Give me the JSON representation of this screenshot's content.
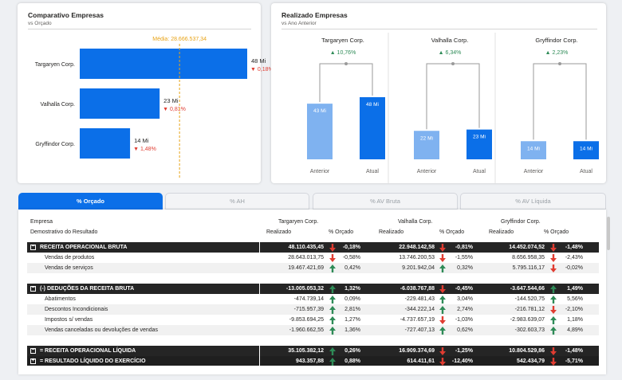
{
  "card1": {
    "title": "Comparativo Empresas",
    "subtitle": "vs Orçado",
    "media_label": "Média: 28.666.537,34",
    "bars": [
      {
        "name": "Targaryen Corp.",
        "value_label": "48 Mi",
        "pct": "0,18%"
      },
      {
        "name": "Valhalla Corp.",
        "value_label": "23 Mi",
        "pct": "0,81%"
      },
      {
        "name": "Gryffindor Corp.",
        "value_label": "14 Mi",
        "pct": "1,48%"
      }
    ],
    "chart_data": {
      "type": "bar",
      "categories": [
        "Targaryen Corp.",
        "Valhalla Corp.",
        "Gryffindor Corp."
      ],
      "values": [
        48110435,
        22948142,
        14452074
      ],
      "reference_line": 28666537.34
    }
  },
  "card2": {
    "title": "Realizado Empresas",
    "subtitle": "vs Ano Anterior",
    "groups": [
      {
        "name": "Targaryen Corp.",
        "delta": "10,76%",
        "anterior_label": "43 Mi",
        "atual_label": "48 Mi",
        "anterior": 43,
        "atual": 48
      },
      {
        "name": "Valhalla Corp.",
        "delta": "6,34%",
        "anterior_label": "22 Mi",
        "atual_label": "23 Mi",
        "anterior": 22,
        "atual": 23
      },
      {
        "name": "Gryffindor Corp.",
        "delta": "2,23%",
        "anterior_label": "14 Mi",
        "atual_label": "14 Mi",
        "anterior": 14,
        "atual": 14
      }
    ],
    "x_labels": [
      "Anterior",
      "Atual"
    ],
    "chart_data": {
      "type": "bar",
      "categories": [
        "Targaryen Corp.",
        "Valhalla Corp.",
        "Gryffindor Corp."
      ],
      "series": [
        {
          "name": "Anterior",
          "values": [
            43,
            22,
            14
          ]
        },
        {
          "name": "Atual",
          "values": [
            48,
            23,
            14
          ]
        }
      ]
    }
  },
  "tabs": [
    "% Orçado",
    "% AH",
    "% AV Bruta",
    "% AV Líquida"
  ],
  "table": {
    "h_empresa": "Empresa",
    "h_demo": "Demostrativo do Resultado",
    "companies": [
      "Targaryen Corp.",
      "Valhalla Corp.",
      "Gryffindor Corp."
    ],
    "h_realizado": "Realizado",
    "h_orcado": "% Orçado",
    "rows": [
      {
        "kind": "group",
        "label": "RECEITA OPERACIONAL BRUTA",
        "box": "−",
        "vals": [
          [
            "48.110.435,45",
            "-0,18%",
            "down"
          ],
          [
            "22.948.142,58",
            "-0,81%",
            "down"
          ],
          [
            "14.452.074,52",
            "-1,48%",
            "down"
          ]
        ]
      },
      {
        "kind": "item",
        "label": "Vendas de produtos",
        "vals": [
          [
            "28.643.013,75",
            "-0,58%",
            "down"
          ],
          [
            "13.746.200,53",
            "-1,55%",
            "down"
          ],
          [
            "8.656.958,35",
            "-2,43%",
            "down"
          ]
        ]
      },
      {
        "kind": "item",
        "label": "Vendas de serviços",
        "vals": [
          [
            "19.467.421,69",
            "0,42%",
            "up"
          ],
          [
            "9.201.942,04",
            "0,32%",
            "up"
          ],
          [
            "5.795.116,17",
            "-0,02%",
            "down"
          ]
        ]
      },
      {
        "kind": "gap"
      },
      {
        "kind": "group",
        "label": "(-) DEDUÇÕES DA RECEITA BRUTA",
        "box": "−",
        "vals": [
          [
            "-13.005.053,32",
            "1,32%",
            "up"
          ],
          [
            "-6.038.767,88",
            "-0,45%",
            "down"
          ],
          [
            "-3.647.544,66",
            "1,49%",
            "up"
          ]
        ]
      },
      {
        "kind": "item",
        "label": "Abatimentos",
        "vals": [
          [
            "-474.739,14",
            "0,09%",
            "up"
          ],
          [
            "-229.481,43",
            "3,04%",
            "up"
          ],
          [
            "-144.520,75",
            "5,56%",
            "up"
          ]
        ]
      },
      {
        "kind": "item",
        "label": "Descontos Incondicionais",
        "vals": [
          [
            "-715.957,39",
            "2,81%",
            "up"
          ],
          [
            "-344.222,14",
            "2,74%",
            "up"
          ],
          [
            "-216.781,12",
            "-2,10%",
            "down"
          ]
        ]
      },
      {
        "kind": "item",
        "label": "Impostos s/ vendas",
        "vals": [
          [
            "-9.853.694,25",
            "1,27%",
            "up"
          ],
          [
            "-4.737.657,19",
            "-1,03%",
            "down"
          ],
          [
            "-2.983.639,07",
            "1,18%",
            "up"
          ]
        ]
      },
      {
        "kind": "item",
        "label": "Vendas canceladas ou devoluções de vendas",
        "vals": [
          [
            "-1.960.662,55",
            "1,36%",
            "up"
          ],
          [
            "-727.407,13",
            "0,62%",
            "up"
          ],
          [
            "-302.603,73",
            "4,89%",
            "up"
          ]
        ]
      },
      {
        "kind": "gap"
      },
      {
        "kind": "group",
        "label": "= RECEITA OPERACIONAL LÍQUIDA",
        "box": "−",
        "vals": [
          [
            "35.105.382,12",
            "0,26%",
            "up"
          ],
          [
            "16.909.374,69",
            "-1,25%",
            "down"
          ],
          [
            "10.804.529,86",
            "-1,48%",
            "down"
          ]
        ]
      },
      {
        "kind": "group2",
        "label": "= RESULTADO LÍQUIDO DO EXERCÍCIO",
        "box": "+",
        "vals": [
          [
            "943.357,88",
            "0,88%",
            "up"
          ],
          [
            "614.411,61",
            "-12,40%",
            "down"
          ],
          [
            "542.434,79",
            "-5,71%",
            "down"
          ]
        ]
      }
    ]
  },
  "colors": {
    "accent": "#0b6fe8",
    "light_bar": "#7fb2f0",
    "up": "#2e8b57",
    "down": "#e03c31",
    "media_line": "#e8a317"
  }
}
